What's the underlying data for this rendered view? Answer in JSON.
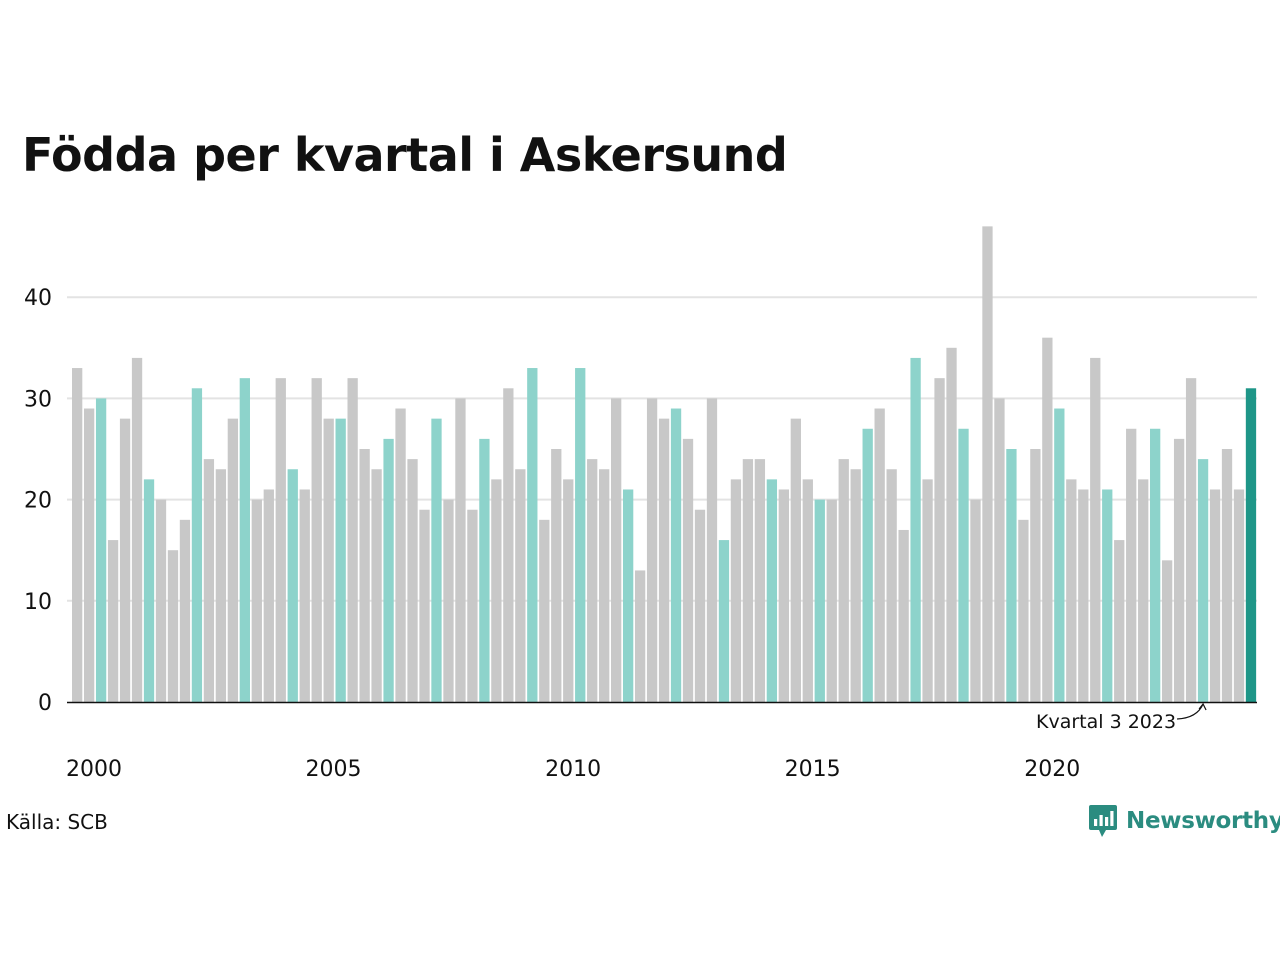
{
  "chart_data": {
    "type": "bar",
    "title": "Födda per kvartal i Askersund",
    "source": "Källa: SCB",
    "brand": "Newsworthy",
    "annotation": {
      "text": "Kvartal 3 2023",
      "index": 94
    },
    "ylim": [
      0,
      47
    ],
    "y_ticks": [
      0,
      10,
      20,
      30,
      40
    ],
    "x_tick_labels": [
      {
        "label": "2000",
        "index": 0
      },
      {
        "label": "2005",
        "index": 20
      },
      {
        "label": "2010",
        "index": 40
      },
      {
        "label": "2015",
        "index": 60
      },
      {
        "label": "2020",
        "index": 80
      }
    ],
    "grid": true,
    "highlight_quarter": 3,
    "colors": {
      "default": "#c8c8c8",
      "highlight": "#8dd3cb",
      "latest": "#1e9688",
      "grid": "#e3e3e3",
      "axis": "#111111"
    },
    "values": [
      33,
      29,
      30,
      16,
      28,
      34,
      22,
      20,
      15,
      18,
      31,
      24,
      23,
      28,
      32,
      20,
      21,
      32,
      23,
      21,
      32,
      28,
      28,
      32,
      25,
      23,
      26,
      29,
      24,
      19,
      28,
      20,
      30,
      19,
      26,
      22,
      31,
      23,
      33,
      18,
      25,
      22,
      33,
      24,
      23,
      30,
      21,
      13,
      30,
      28,
      29,
      26,
      19,
      30,
      16,
      22,
      24,
      24,
      22,
      21,
      28,
      22,
      20,
      20,
      24,
      23,
      27,
      29,
      23,
      17,
      34,
      22,
      32,
      35,
      27,
      20,
      47,
      30,
      25,
      18,
      25,
      36,
      29,
      22,
      21,
      34,
      21,
      16,
      27,
      22,
      27,
      14,
      26,
      32,
      24,
      21,
      25,
      21,
      31
    ]
  }
}
